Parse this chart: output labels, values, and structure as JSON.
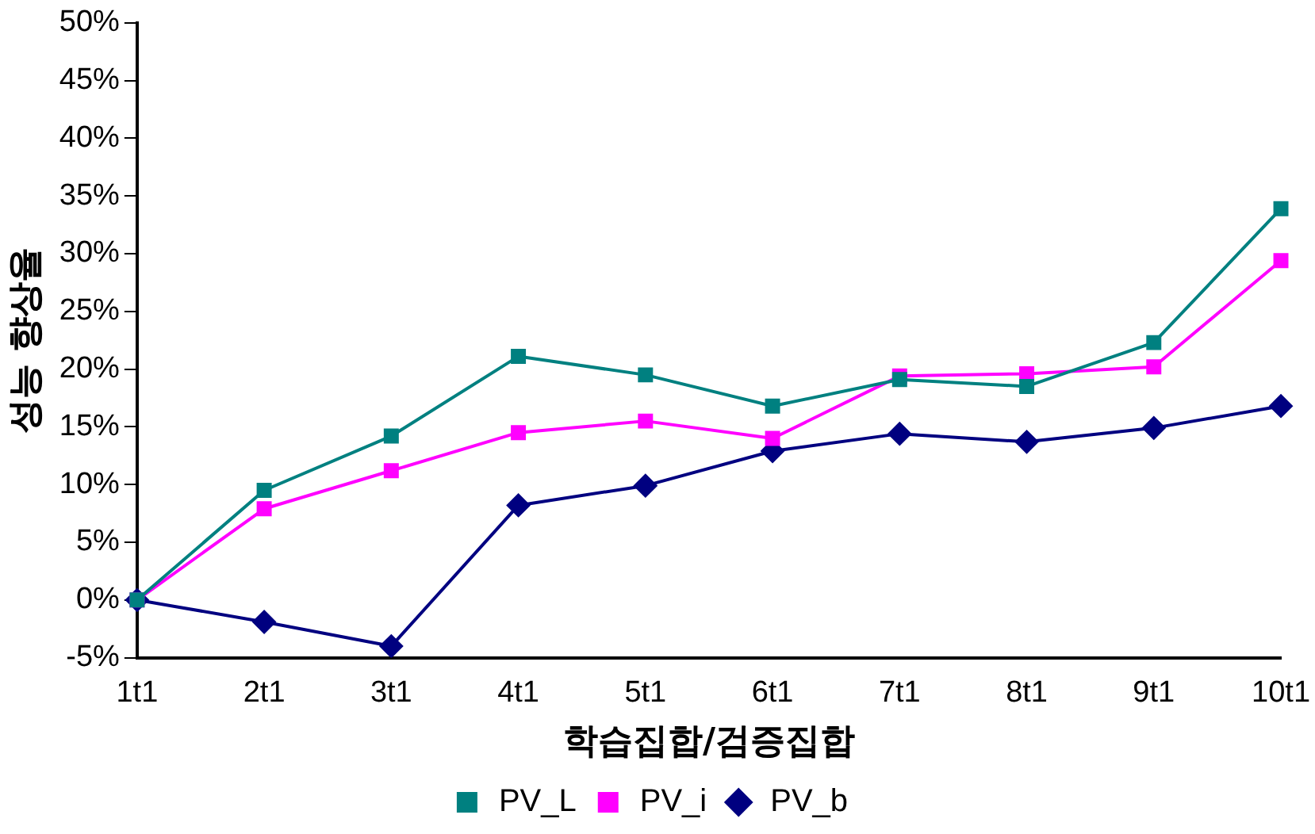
{
  "chart_data": {
    "type": "line",
    "xlabel": "학습집합/검증집합",
    "ylabel": "성능 향상율",
    "categories": [
      "1t1",
      "2t1",
      "3t1",
      "4t1",
      "5t1",
      "6t1",
      "7t1",
      "8t1",
      "9t1",
      "10t1"
    ],
    "series": [
      {
        "name": "PV_b",
        "color": "#000080",
        "marker": "diamond",
        "values": [
          0,
          -1.9,
          -4.0,
          8.2,
          9.9,
          12.9,
          14.4,
          13.7,
          14.9,
          16.8
        ]
      },
      {
        "name": "PV_i",
        "color": "#ff00ff",
        "marker": "square",
        "values": [
          0,
          7.9,
          11.2,
          14.5,
          15.5,
          14.0,
          19.4,
          19.6,
          20.2,
          29.4
        ]
      },
      {
        "name": "PV_L",
        "color": "#008080",
        "marker": "square",
        "values": [
          0,
          9.5,
          14.2,
          21.1,
          19.5,
          16.8,
          19.1,
          18.5,
          22.3,
          33.9
        ]
      }
    ],
    "ylim": [
      -5,
      50
    ],
    "yticks": [
      {
        "value": -5,
        "label": "-5%"
      },
      {
        "value": 0,
        "label": "0%"
      },
      {
        "value": 5,
        "label": "5%"
      },
      {
        "value": 10,
        "label": "10%"
      },
      {
        "value": 15,
        "label": "15%"
      },
      {
        "value": 20,
        "label": "20%"
      },
      {
        "value": 25,
        "label": "25%"
      },
      {
        "value": 30,
        "label": "30%"
      },
      {
        "value": 35,
        "label": "35%"
      },
      {
        "value": 40,
        "label": "40%"
      },
      {
        "value": 45,
        "label": "45%"
      },
      {
        "value": 50,
        "label": "50%"
      }
    ],
    "grid": false,
    "legend": "bottom",
    "line_style": "solid"
  }
}
